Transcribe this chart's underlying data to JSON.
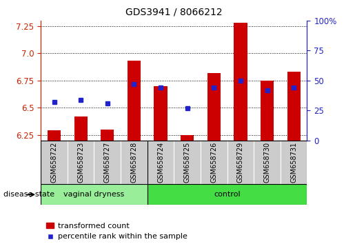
{
  "title": "GDS3941 / 8066212",
  "samples": [
    "GSM658722",
    "GSM658723",
    "GSM658727",
    "GSM658728",
    "GSM658724",
    "GSM658725",
    "GSM658726",
    "GSM658729",
    "GSM658730",
    "GSM658731"
  ],
  "red_values": [
    6.29,
    6.42,
    6.3,
    6.93,
    6.7,
    6.25,
    6.82,
    7.28,
    6.75,
    6.83
  ],
  "blue_values_pct": [
    32,
    34,
    31,
    47,
    44,
    27,
    44,
    50,
    42,
    44
  ],
  "ymin": 6.2,
  "ymax": 7.3,
  "yticks": [
    6.25,
    6.5,
    6.75,
    7.0,
    7.25
  ],
  "right_yticks": [
    0,
    25,
    50,
    75,
    100
  ],
  "bar_color": "#cc0000",
  "dot_color": "#2222cc",
  "bar_bottom": 6.2,
  "group1_label": "vaginal dryness",
  "group2_label": "control",
  "group1_color": "#99ee99",
  "group2_color": "#44dd44",
  "group1_n": 4,
  "group2_n": 6,
  "xlabel_left": "disease state",
  "legend_red": "transformed count",
  "legend_blue": "percentile rank within the sample",
  "ylabel_color_left": "#cc2200",
  "ylabel_color_right": "#2222cc",
  "bar_width": 0.5,
  "xtick_bg": "#cccccc"
}
